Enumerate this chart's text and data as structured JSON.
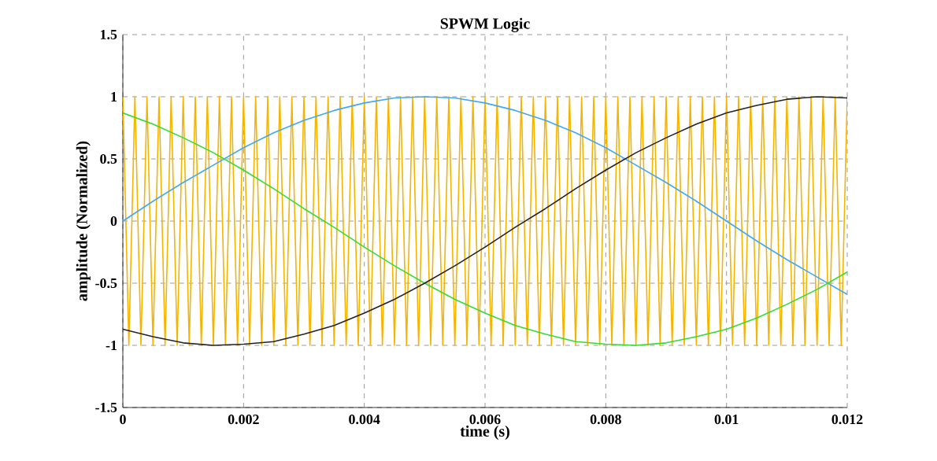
{
  "chart_data": {
    "type": "line",
    "title": "SPWM Logic",
    "xlabel": "time (s)",
    "ylabel": "amplitude (Normalized)",
    "xlim": [
      0,
      0.012
    ],
    "ylim": [
      -1.5,
      1.5
    ],
    "xticks": [
      0,
      0.002,
      0.004,
      0.006,
      0.008,
      0.01,
      0.012
    ],
    "yticks": [
      -1.5,
      -1,
      -0.5,
      0,
      0.5,
      1,
      1.5
    ],
    "grid": true,
    "marker": "none",
    "line_style": "solid",
    "x": [
      0,
      0.0005,
      0.001,
      0.0015,
      0.002,
      0.0025,
      0.003,
      0.0035,
      0.004,
      0.0045,
      0.005,
      0.0055,
      0.006,
      0.0065,
      0.007,
      0.0075,
      0.008,
      0.0085,
      0.009,
      0.0095,
      0.01,
      0.0105,
      0.011,
      0.0115,
      0.012
    ],
    "series": [
      {
        "color": "#f5b400",
        "x": [
          0,
          0.0001,
          0.0002,
          0.0003,
          0.0004,
          0.0005,
          0.0006,
          0.0007,
          0.0008,
          0.0009,
          0.001,
          0.0011,
          0.0012,
          0.0013,
          0.0014,
          0.0015,
          0.0016,
          0.0017,
          0.0018,
          0.0019,
          0.002,
          0.0021,
          0.0022,
          0.0023,
          0.0024,
          0.0025,
          0.0026,
          0.0027,
          0.0028,
          0.0029,
          0.003,
          0.0031,
          0.0032,
          0.0033,
          0.0034,
          0.0035,
          0.0036,
          0.0037,
          0.0038,
          0.0039,
          0.004,
          0.0041,
          0.0042,
          0.0043,
          0.0044,
          0.0045,
          0.0046,
          0.0047,
          0.0048,
          0.0049,
          0.005,
          0.0051,
          0.0052,
          0.0053,
          0.0054,
          0.0055,
          0.0056,
          0.0057,
          0.0058,
          0.0059,
          0.006,
          0.0061,
          0.0062,
          0.0063,
          0.0064,
          0.0065,
          0.0066,
          0.0067,
          0.0068,
          0.0069,
          0.007,
          0.0071,
          0.0072,
          0.0073,
          0.0074,
          0.0075,
          0.0076,
          0.0077,
          0.0078,
          0.0079,
          0.008,
          0.0081,
          0.0082,
          0.0083,
          0.0084,
          0.0085,
          0.0086,
          0.0087,
          0.0088,
          0.0089,
          0.009,
          0.0091,
          0.0092,
          0.0093,
          0.0094,
          0.0095,
          0.0096,
          0.0097,
          0.0098,
          0.0099,
          0.01,
          0.0101,
          0.0102,
          0.0103,
          0.0104,
          0.0105,
          0.0106,
          0.0107,
          0.0108,
          0.0109,
          0.011,
          0.0111,
          0.0112,
          0.0113,
          0.0114,
          0.0115,
          0.0116,
          0.0117,
          0.0118,
          0.0119,
          0.012
        ],
        "values": [
          1,
          -1,
          1,
          -1,
          1,
          -1,
          1,
          -1,
          1,
          -1,
          1,
          -1,
          1,
          -1,
          1,
          -1,
          1,
          -1,
          1,
          -1,
          1,
          -1,
          1,
          -1,
          1,
          -1,
          1,
          -1,
          1,
          -1,
          1,
          -1,
          1,
          -1,
          1,
          -1,
          1,
          -1,
          1,
          -1,
          1,
          -1,
          1,
          -1,
          1,
          -1,
          1,
          -1,
          1,
          -1,
          1,
          -1,
          1,
          -1,
          1,
          -1,
          1,
          -1,
          1,
          -1,
          1,
          -1,
          1,
          -1,
          1,
          -1,
          1,
          -1,
          1,
          -1,
          1,
          -1,
          1,
          -1,
          1,
          -1,
          1,
          -1,
          1,
          -1,
          1,
          -1,
          1,
          -1,
          1,
          -1,
          1,
          -1,
          1,
          -1,
          1,
          -1,
          1,
          -1,
          1,
          -1,
          1,
          -1,
          1,
          -1,
          1,
          -1,
          1,
          -1,
          1,
          -1,
          1,
          -1,
          1,
          -1,
          1,
          -1,
          1,
          -1,
          1,
          -1,
          1,
          -1,
          1,
          -1,
          1
        ]
      },
      {
        "color": "#3fa9f5",
        "values": [
          0,
          0.16,
          0.31,
          0.45,
          0.59,
          0.71,
          0.81,
          0.89,
          0.95,
          0.99,
          1,
          0.99,
          0.95,
          0.89,
          0.81,
          0.71,
          0.59,
          0.45,
          0.31,
          0.16,
          0,
          -0.16,
          -0.31,
          -0.45,
          -0.59
        ]
      },
      {
        "color": "#33dd33",
        "values": [
          0.87,
          0.78,
          0.67,
          0.55,
          0.41,
          0.26,
          0.1,
          -0.05,
          -0.21,
          -0.36,
          -0.5,
          -0.63,
          -0.74,
          -0.84,
          -0.91,
          -0.97,
          -0.99,
          -1,
          -0.98,
          -0.93,
          -0.87,
          -0.78,
          -0.67,
          -0.55,
          -0.41
        ]
      },
      {
        "color": "#222222",
        "values": [
          -0.87,
          -0.93,
          -0.98,
          -1,
          -0.99,
          -0.97,
          -0.91,
          -0.84,
          -0.74,
          -0.63,
          -0.5,
          -0.36,
          -0.21,
          -0.05,
          0.1,
          0.26,
          0.41,
          0.55,
          0.67,
          0.78,
          0.87,
          0.93,
          0.98,
          1,
          0.99
        ]
      }
    ]
  }
}
